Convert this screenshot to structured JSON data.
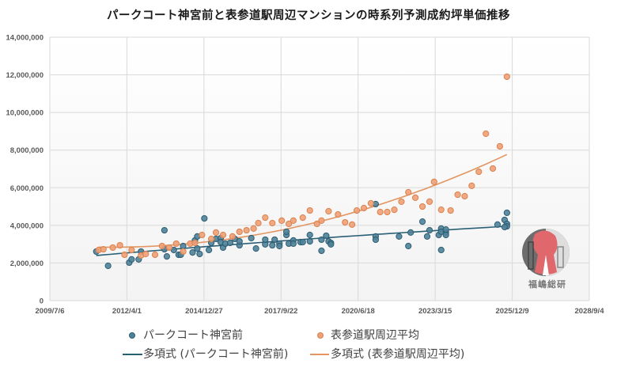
{
  "chart_data": {
    "type": "scatter",
    "title": "パークコート神宮前と表参道駅周辺マンションの時系列予測成約坪単価推移",
    "xlabel": "",
    "ylabel": "",
    "x_ticks": [
      "2009/7/6",
      "2012/4/1",
      "2014/12/27",
      "2017/9/22",
      "2020/6/18",
      "2023/3/15",
      "2025/12/9",
      "2028/9/4"
    ],
    "xlim": [
      "2009/7/6",
      "2028/9/4"
    ],
    "y_ticks": [
      "0",
      "2,000,000",
      "4,000,000",
      "6,000,000",
      "8,000,000",
      "10,000,000",
      "12,000,000",
      "14,000,000"
    ],
    "ylim": [
      0,
      14000000
    ],
    "grid": true,
    "legend_position": "bottom",
    "series": [
      {
        "name": "パークコート神宮前",
        "color": "#4f8299",
        "trendline": "polynomial",
        "trend_name": "多項式 (パークコート神宮前)",
        "trend_color": "#2b5f75",
        "points": [
          [
            "2011/3/1",
            2610000
          ],
          [
            "2011/8/1",
            1850000
          ],
          [
            "2012/5/1",
            2020000
          ],
          [
            "2012/6/1",
            2190000
          ],
          [
            "2012/9/1",
            2190000
          ],
          [
            "2012/10/1",
            2610000
          ],
          [
            "2013/8/1",
            3740000
          ],
          [
            "2013/8/1",
            2730000
          ],
          [
            "2013/9/1",
            2350000
          ],
          [
            "2013/12/1",
            2690000
          ],
          [
            "2014/2/1",
            2440000
          ],
          [
            "2014/3/1",
            2440000
          ],
          [
            "2014/4/1",
            2900000
          ],
          [
            "2014/8/1",
            2560000
          ],
          [
            "2014/9/1",
            3200000
          ],
          [
            "2014/10/1",
            3410000
          ],
          [
            "2014/10/1",
            2770000
          ],
          [
            "2014/11/1",
            2480000
          ],
          [
            "2015/1/1",
            4370000
          ],
          [
            "2015/3/1",
            2690000
          ],
          [
            "2015/4/1",
            3070000
          ],
          [
            "2015/6/1",
            3280000
          ],
          [
            "2015/8/1",
            3320000
          ],
          [
            "2015/8/1",
            3110000
          ],
          [
            "2015/9/1",
            2820000
          ],
          [
            "2015/10/1",
            3030000
          ],
          [
            "2015/12/1",
            3070000
          ],
          [
            "2016/2/1",
            3280000
          ],
          [
            "2016/4/1",
            2940000
          ],
          [
            "2016/4/1",
            3150000
          ],
          [
            "2016/9/1",
            3320000
          ],
          [
            "2016/11/1",
            2770000
          ],
          [
            "2017/3/1",
            2990000
          ],
          [
            "2017/3/1",
            3240000
          ],
          [
            "2017/6/1",
            2940000
          ],
          [
            "2017/7/1",
            3240000
          ],
          [
            "2017/9/1",
            3030000
          ],
          [
            "2017/9/1",
            2900000
          ],
          [
            "2017/12/1",
            3490000
          ],
          [
            "2017/12/1",
            3660000
          ],
          [
            "2018/1/1",
            3030000
          ],
          [
            "2018/3/1",
            3200000
          ],
          [
            "2018/3/1",
            3030000
          ],
          [
            "2018/6/1",
            3110000
          ],
          [
            "2018/7/1",
            3110000
          ],
          [
            "2018/10/1",
            3490000
          ],
          [
            "2018/10/1",
            3150000
          ],
          [
            "2019/3/1",
            3240000
          ],
          [
            "2019/3/1",
            2650000
          ],
          [
            "2019/5/1",
            3450000
          ],
          [
            "2019/6/1",
            3150000
          ],
          [
            "2019/7/1",
            3070000
          ],
          [
            "2019/7/1",
            2990000
          ],
          [
            "2021/2/1",
            5130000
          ],
          [
            "2021/2/1",
            3410000
          ],
          [
            "2021/2/1",
            3240000
          ],
          [
            "2021/12/1",
            3410000
          ],
          [
            "2022/4/1",
            2900000
          ],
          [
            "2022/5/1",
            3620000
          ],
          [
            "2022/10/1",
            4200000
          ],
          [
            "2022/12/1",
            3410000
          ],
          [
            "2023/1/1",
            3740000
          ],
          [
            "2023/5/1",
            3490000
          ],
          [
            "2023/6/1",
            2690000
          ],
          [
            "2023/6/1",
            3830000
          ],
          [
            "2023/6/1",
            3660000
          ],
          [
            "2023/8/1",
            3620000
          ],
          [
            "2023/8/1",
            3780000
          ],
          [
            "2023/8/1",
            3490000
          ],
          [
            "2025/6/1",
            4040000
          ],
          [
            "2025/9/1",
            4290000
          ],
          [
            "2025/10/1",
            4670000
          ],
          [
            "2025/10/1",
            4080000
          ],
          [
            "2025/10/1",
            3950000
          ],
          [
            "2025/9/1",
            3910000
          ]
        ]
      },
      {
        "name": "表参道駅周辺平均",
        "color": "#f0a075",
        "trendline": "polynomial",
        "trend_name": "多項式 (表参道駅周辺平均)",
        "trend_color": "#e39560",
        "points": [
          [
            "2011/4/1",
            2690000
          ],
          [
            "2011/6/1",
            2730000
          ],
          [
            "2011/10/1",
            2820000
          ],
          [
            "2012/1/1",
            2940000
          ],
          [
            "2012/3/1",
            2440000
          ],
          [
            "2012/6/1",
            2690000
          ],
          [
            "2012/10/1",
            2400000
          ],
          [
            "2012/12/1",
            2480000
          ],
          [
            "2013/4/1",
            2440000
          ],
          [
            "2013/7/1",
            2900000
          ],
          [
            "2013/10/1",
            2820000
          ],
          [
            "2014/1/1",
            3030000
          ],
          [
            "2014/4/1",
            2610000
          ],
          [
            "2014/7/1",
            3030000
          ],
          [
            "2014/9/1",
            3070000
          ],
          [
            "2014/12/1",
            3490000
          ],
          [
            "2015/4/1",
            3280000
          ],
          [
            "2015/6/1",
            3620000
          ],
          [
            "2015/9/1",
            3490000
          ],
          [
            "2016/1/1",
            3410000
          ],
          [
            "2016/4/1",
            3660000
          ],
          [
            "2016/7/1",
            3740000
          ],
          [
            "2016/10/1",
            3830000
          ],
          [
            "2016/12/1",
            4120000
          ],
          [
            "2017/3/1",
            4410000
          ],
          [
            "2017/6/1",
            4120000
          ],
          [
            "2017/10/1",
            4250000
          ],
          [
            "2018/1/1",
            4080000
          ],
          [
            "2018/3/1",
            4250000
          ],
          [
            "2018/7/1",
            4410000
          ],
          [
            "2018/10/1",
            4790000
          ],
          [
            "2019/1/1",
            4080000
          ],
          [
            "2019/3/1",
            4250000
          ],
          [
            "2019/6/1",
            4750000
          ],
          [
            "2019/10/1",
            4580000
          ],
          [
            "2020/1/1",
            4160000
          ],
          [
            "2020/4/1",
            4040000
          ],
          [
            "2020/6/1",
            4790000
          ],
          [
            "2020/9/1",
            4920000
          ],
          [
            "2020/12/1",
            5170000
          ],
          [
            "2021/4/1",
            4710000
          ],
          [
            "2021/7/1",
            4710000
          ],
          [
            "2021/10/1",
            4830000
          ],
          [
            "2022/1/1",
            5260000
          ],
          [
            "2022/4/1",
            5760000
          ],
          [
            "2022/7/1",
            5470000
          ],
          [
            "2022/10/1",
            5000000
          ],
          [
            "2023/1/1",
            5260000
          ],
          [
            "2023/3/1",
            6310000
          ],
          [
            "2023/6/1",
            4830000
          ],
          [
            "2023/10/1",
            4790000
          ],
          [
            "2024/1/1",
            5630000
          ],
          [
            "2024/4/1",
            5550000
          ],
          [
            "2024/7/1",
            6100000
          ],
          [
            "2024/10/1",
            6850000
          ],
          [
            "2025/1/1",
            8870000
          ],
          [
            "2025/4/1",
            7020000
          ],
          [
            "2025/7/1",
            8200000
          ],
          [
            "2025/10/1",
            11900000
          ]
        ]
      }
    ]
  },
  "logo": {
    "text": "福嶋総研"
  }
}
